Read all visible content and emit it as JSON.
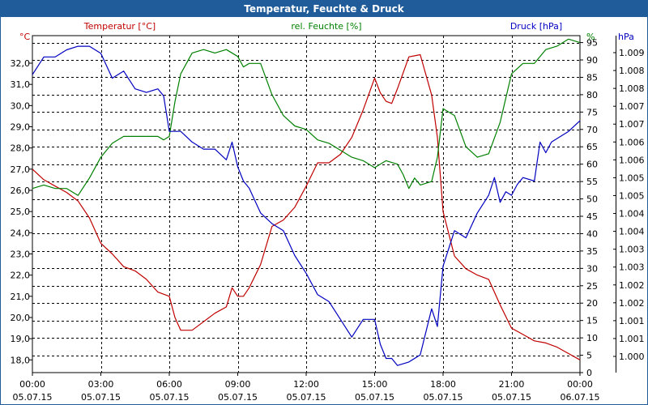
{
  "window": {
    "title": "Temperatur, Feuchte & Druck"
  },
  "chart_data": {
    "type": "line",
    "title": "Temperatur, Feuchte & Druck",
    "grid": true,
    "x": {
      "ticks": [
        {
          "time": "00:00",
          "date": "05.07.15"
        },
        {
          "time": "03:00",
          "date": "05.07.15"
        },
        {
          "time": "06:00",
          "date": "05.07.15"
        },
        {
          "time": "09:00",
          "date": "05.07.15"
        },
        {
          "time": "12:00",
          "date": "05.07.15"
        },
        {
          "time": "15:00",
          "date": "05.07.15"
        },
        {
          "time": "18:00",
          "date": "05.07.15"
        },
        {
          "time": "21:00",
          "date": "05.07.15"
        },
        {
          "time": "00:00",
          "date": "06.07.15"
        }
      ],
      "range_hours": [
        0,
        24
      ]
    },
    "axes": {
      "temperature": {
        "label": "Temperatur [°C]",
        "unit": "°C",
        "color": "#c00000",
        "range": [
          17.4,
          33.3
        ],
        "ticks": [
          "18,0",
          "19,0",
          "20,0",
          "21,0",
          "22,0",
          "23,0",
          "24,0",
          "25,0",
          "26,0",
          "27,0",
          "28,0",
          "29,0",
          "30,0",
          "31,0",
          "32,0"
        ]
      },
      "humidity": {
        "label": "rel. Feuchte [%]",
        "unit": "%",
        "color": "#008000",
        "range": [
          0,
          97
        ],
        "ticks": [
          "0",
          "5",
          "10",
          "15",
          "20",
          "25",
          "30",
          "35",
          "40",
          "45",
          "50",
          "55",
          "60",
          "65",
          "70",
          "75",
          "80",
          "85",
          "90",
          "95"
        ]
      },
      "pressure": {
        "label": "Druck [hPa]",
        "unit": "hPa",
        "color": "#0000c0",
        "range": [
          1000.0,
          1009.5
        ],
        "ticks": [
          "1.000",
          "1.001",
          "1.001",
          "1.002",
          "1.002",
          "1.003",
          "1.003",
          "1.004",
          "1.004",
          "1.005",
          "1.005",
          "1.006",
          "1.006",
          "1.007",
          "1.007",
          "1.008",
          "1.008",
          "1.009"
        ]
      }
    },
    "series": [
      {
        "name": "Temperatur [°C]",
        "axis": "temperature",
        "color": "#c00000",
        "x": [
          0,
          0.5,
          1,
          1.5,
          2,
          2.5,
          3,
          3.5,
          4,
          4.5,
          5,
          5.5,
          6,
          6.25,
          6.5,
          7,
          7.5,
          8,
          8.5,
          8.75,
          9,
          9.25,
          9.5,
          10,
          10.5,
          11,
          11.5,
          12,
          12.5,
          13,
          13.5,
          14,
          14.5,
          15,
          15.25,
          15.5,
          15.75,
          16,
          16.5,
          17,
          17.5,
          17.75,
          18,
          18.5,
          19,
          19.5,
          20,
          20.5,
          21,
          21.5,
          22,
          22.5,
          23,
          23.5,
          24
        ],
        "values": [
          27.0,
          26.5,
          26.2,
          25.9,
          25.5,
          24.7,
          23.5,
          23.0,
          22.4,
          22.2,
          21.8,
          21.2,
          21.0,
          20.0,
          19.4,
          19.4,
          19.8,
          20.2,
          20.5,
          21.4,
          21.0,
          21.0,
          21.4,
          22.5,
          24.3,
          24.6,
          25.2,
          26.2,
          27.3,
          27.3,
          27.7,
          28.5,
          29.8,
          31.3,
          30.6,
          30.2,
          30.1,
          30.8,
          32.3,
          32.4,
          30.5,
          28.5,
          25.0,
          22.9,
          22.3,
          22.0,
          21.8,
          20.6,
          19.5,
          19.2,
          18.9,
          18.8,
          18.6,
          18.3,
          18.0
        ]
      },
      {
        "name": "rel. Feuchte [%]",
        "axis": "humidity",
        "color": "#008000",
        "x": [
          0,
          0.5,
          1,
          1.5,
          2,
          2.5,
          3,
          3.5,
          4,
          4.5,
          5,
          5.5,
          5.75,
          6,
          6.25,
          6.5,
          7,
          7.5,
          8,
          8.5,
          9,
          9.25,
          9.5,
          10,
          10.5,
          11,
          11.5,
          12,
          12.5,
          13,
          13.5,
          14,
          14.5,
          15,
          15.5,
          16,
          16.25,
          16.5,
          16.75,
          17,
          17.5,
          17.75,
          18,
          18.5,
          19,
          19.5,
          20,
          20.5,
          21,
          21.5,
          22,
          22.5,
          23,
          23.5,
          24
        ],
        "values": [
          53,
          54,
          53,
          53,
          51,
          56,
          62,
          66,
          68,
          68,
          68,
          68,
          67,
          68,
          78,
          86,
          92,
          93,
          92,
          93,
          91,
          88,
          89,
          89,
          80,
          74,
          71,
          70,
          67,
          66,
          64,
          62,
          61,
          59,
          61,
          60,
          57,
          53,
          56,
          54,
          55,
          62,
          76,
          74,
          65,
          62,
          63,
          72,
          86,
          89,
          89,
          93,
          94,
          96,
          95
        ]
      },
      {
        "name": "Druck [hPa]",
        "axis": "pressure",
        "color": "#0000c0",
        "x": [
          0,
          0.5,
          1,
          1.5,
          2,
          2.5,
          3,
          3.5,
          4,
          4.5,
          5,
          5.5,
          5.75,
          6,
          6.25,
          6.5,
          7,
          7.5,
          8,
          8.5,
          8.75,
          9,
          9.25,
          9.5,
          10,
          10.5,
          11,
          11.5,
          12,
          12.5,
          13,
          13.5,
          14,
          14.5,
          15,
          15.25,
          15.5,
          15.75,
          16,
          16.5,
          17,
          17.5,
          17.75,
          18,
          18.5,
          19,
          19.5,
          20,
          20.25,
          20.5,
          20.75,
          21,
          21.25,
          21.5,
          22,
          22.25,
          22.5,
          22.75,
          23,
          23.5,
          24
        ],
        "values": [
          1008.4,
          1008.9,
          1008.9,
          1009.1,
          1009.2,
          1009.2,
          1009.0,
          1008.3,
          1008.5,
          1008.0,
          1007.9,
          1008.0,
          1007.8,
          1006.8,
          1006.8,
          1006.8,
          1006.5,
          1006.3,
          1006.3,
          1006.0,
          1006.5,
          1005.8,
          1005.4,
          1005.2,
          1004.5,
          1004.2,
          1004.0,
          1003.3,
          1002.8,
          1002.2,
          1002.0,
          1001.5,
          1001.0,
          1001.5,
          1001.5,
          1000.8,
          1000.4,
          1000.4,
          1000.2,
          1000.3,
          1000.5,
          1001.8,
          1001.3,
          1003.0,
          1004.0,
          1003.8,
          1004.5,
          1005.0,
          1005.5,
          1004.8,
          1005.1,
          1005.0,
          1005.3,
          1005.5,
          1005.4,
          1006.5,
          1006.2,
          1006.5,
          1006.6,
          1006.8,
          1007.1
        ]
      }
    ]
  }
}
